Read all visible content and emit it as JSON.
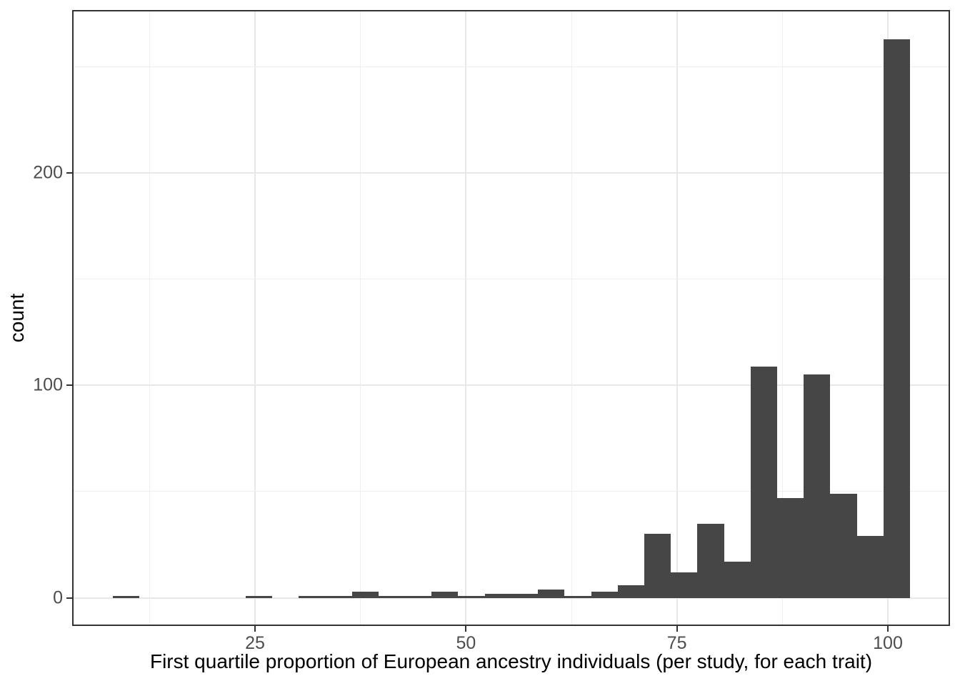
{
  "chart_data": {
    "type": "bar",
    "subtype": "histogram",
    "title": "",
    "xlabel": "First quartile proportion of European ancestry individuals (per study, for each trait)",
    "ylabel": "count",
    "x_tick_labels": [
      "25",
      "50",
      "75",
      "100"
    ],
    "x_ticks": [
      25,
      50,
      75,
      100
    ],
    "x_minor_ticks": [
      12.5,
      37.5,
      62.5,
      87.5
    ],
    "y_tick_labels": [
      "0",
      "100",
      "200"
    ],
    "y_ticks": [
      0,
      100,
      200
    ],
    "y_minor_ticks": [
      50,
      150,
      250
    ],
    "xlim": [
      3.41,
      107.28
    ],
    "ylim": [
      -12.92,
      276.35
    ],
    "grid": "on",
    "legend": "none",
    "bin_start": 8.13,
    "bin_width": 3.15,
    "counts": [
      1,
      0,
      0,
      0,
      0,
      1,
      0,
      1,
      1,
      3,
      1,
      1,
      3,
      1,
      2,
      2,
      4,
      1,
      3,
      6,
      30,
      12,
      35,
      17,
      109,
      47,
      105,
      49,
      29,
      263
    ],
    "colors": {
      "bar_fill": "#464646",
      "panel_background": "#ffffff",
      "figure_background": "#ffffff",
      "gridline_major": "#e8e8e8",
      "gridline_minor": "#efefef",
      "panel_border": "#333333",
      "tick_mark": "#333333",
      "tick_label": "#4d4d4d",
      "axis_title": "#000000"
    }
  }
}
